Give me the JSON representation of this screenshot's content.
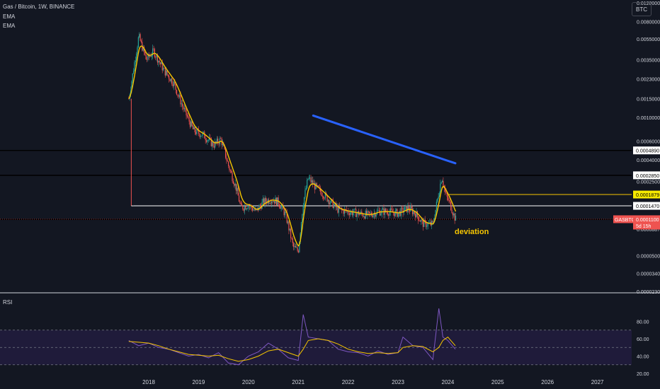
{
  "header": {
    "symbol_line": "Gas / Bitcoin, 1W, BINANCE",
    "indicator_1": "EMA",
    "indicator_2": "EMA",
    "currency_button": "BTC",
    "rsi_label": "RSI"
  },
  "colors": {
    "background": "#131722",
    "text": "#d1d4dc",
    "up": "#26a69a",
    "down": "#ef5350",
    "ema": "#f7c600",
    "trendline": "#2962ff",
    "rsi": "#7e57c2",
    "rsi_ma": "#f7c600",
    "rsi_band": "#1f1b3a"
  },
  "chart_data": [
    {
      "type": "candlestick",
      "scale": "log",
      "ylim": [
        2.3e-05,
        0.012
      ],
      "xlim": [
        2017.0,
        2027.6
      ],
      "x_ticks": [
        "2018",
        "2019",
        "2020",
        "2021",
        "2022",
        "2023",
        "2024",
        "2025",
        "2026",
        "2027"
      ],
      "y_ticks": [
        "0.0120000",
        "0.0080000",
        "0.0055000",
        "0.0035000",
        "0.0023000",
        "0.0015000",
        "0.0010000",
        "0.0006000",
        "0.0004000",
        "0.0002500",
        "0.0000887",
        "0.0000500",
        "0.0000340",
        "0.0000230"
      ],
      "key_levels": [
        {
          "value": 0.000489,
          "label": "0.0004890",
          "color": "#000000"
        },
        {
          "value": 0.000285,
          "label": "0.0002850",
          "color": "#000000"
        },
        {
          "value": 0.0001879,
          "label": "0.0001879",
          "color": "#f7c600",
          "highlight": true
        },
        {
          "value": 0.000147,
          "label": "0.0001470",
          "color": "#ffffff"
        },
        {
          "value": 0.0001096,
          "label": "0.0001096",
          "color": "#000000",
          "highlight": true
        }
      ],
      "current_price": {
        "symbol": "GASBTC",
        "value": "0.0001100",
        "countdown": "5d 15h"
      },
      "trendline": {
        "x": [
          2021.3,
          2024.15
        ],
        "y": [
          0.00104,
          0.00037
        ]
      },
      "annotation": "deviation",
      "series": [
        {
          "x": 2017.6,
          "y": 0.0015
        },
        {
          "x": 2017.8,
          "y": 0.0058
        },
        {
          "x": 2017.95,
          "y": 0.0035
        },
        {
          "x": 2018.1,
          "y": 0.0042
        },
        {
          "x": 2018.3,
          "y": 0.0028
        },
        {
          "x": 2018.5,
          "y": 0.0021
        },
        {
          "x": 2018.7,
          "y": 0.0012
        },
        {
          "x": 2018.9,
          "y": 0.00075
        },
        {
          "x": 2019.1,
          "y": 0.00068
        },
        {
          "x": 2019.3,
          "y": 0.00055
        },
        {
          "x": 2019.45,
          "y": 0.00062
        },
        {
          "x": 2019.6,
          "y": 0.00035
        },
        {
          "x": 2019.75,
          "y": 0.00022
        },
        {
          "x": 2019.85,
          "y": 0.00014
        },
        {
          "x": 2020.0,
          "y": 0.00015
        },
        {
          "x": 2020.15,
          "y": 0.00013
        },
        {
          "x": 2020.3,
          "y": 0.00016
        },
        {
          "x": 2020.45,
          "y": 0.00017
        },
        {
          "x": 2020.6,
          "y": 0.00016
        },
        {
          "x": 2020.75,
          "y": 0.00012
        },
        {
          "x": 2020.9,
          "y": 6e-05
        },
        {
          "x": 2021.0,
          "y": 5.5e-05
        },
        {
          "x": 2021.1,
          "y": 0.00016
        },
        {
          "x": 2021.2,
          "y": 0.00027
        },
        {
          "x": 2021.35,
          "y": 0.00022
        },
        {
          "x": 2021.5,
          "y": 0.00019
        },
        {
          "x": 2021.65,
          "y": 0.00016
        },
        {
          "x": 2021.8,
          "y": 0.000135
        },
        {
          "x": 2022.0,
          "y": 0.00013
        },
        {
          "x": 2022.2,
          "y": 0.000125
        },
        {
          "x": 2022.4,
          "y": 0.00012
        },
        {
          "x": 2022.6,
          "y": 0.00013
        },
        {
          "x": 2022.8,
          "y": 0.00013
        },
        {
          "x": 2023.0,
          "y": 0.000125
        },
        {
          "x": 2023.2,
          "y": 0.00014
        },
        {
          "x": 2023.35,
          "y": 0.000125
        },
        {
          "x": 2023.5,
          "y": 0.0001
        },
        {
          "x": 2023.7,
          "y": 9.8e-05
        },
        {
          "x": 2023.82,
          "y": 0.0002
        },
        {
          "x": 2023.88,
          "y": 0.00028
        },
        {
          "x": 2023.95,
          "y": 0.00019
        },
        {
          "x": 2024.05,
          "y": 0.00015
        },
        {
          "x": 2024.15,
          "y": 0.00011
        }
      ]
    },
    {
      "type": "line",
      "name": "RSI",
      "ylim": [
        20,
        100
      ],
      "y_ticks": [
        "80.00",
        "60.00",
        "40.00",
        "20.00"
      ],
      "band": [
        30,
        70
      ],
      "midline": 50,
      "x": [
        2017.6,
        2017.8,
        2018.0,
        2018.2,
        2018.4,
        2018.6,
        2018.8,
        2019.0,
        2019.2,
        2019.4,
        2019.6,
        2019.8,
        2020.0,
        2020.2,
        2020.4,
        2020.6,
        2020.8,
        2021.0,
        2021.1,
        2021.2,
        2021.4,
        2021.6,
        2021.8,
        2022.0,
        2022.2,
        2022.4,
        2022.6,
        2022.8,
        2023.0,
        2023.1,
        2023.3,
        2023.5,
        2023.7,
        2023.82,
        2023.9,
        2024.0,
        2024.15
      ],
      "values": [
        58,
        52,
        55,
        50,
        48,
        44,
        40,
        42,
        38,
        44,
        32,
        30,
        40,
        45,
        55,
        48,
        38,
        35,
        88,
        62,
        60,
        58,
        48,
        45,
        44,
        40,
        46,
        42,
        44,
        62,
        52,
        50,
        36,
        95,
        62,
        58,
        48
      ],
      "ma": [
        57,
        56,
        55,
        52,
        48,
        45,
        42,
        41,
        40,
        41,
        37,
        34,
        36,
        40,
        46,
        48,
        44,
        40,
        48,
        58,
        60,
        58,
        54,
        48,
        45,
        43,
        44,
        43,
        44,
        50,
        52,
        51,
        45,
        50,
        58,
        62,
        52
      ]
    }
  ]
}
